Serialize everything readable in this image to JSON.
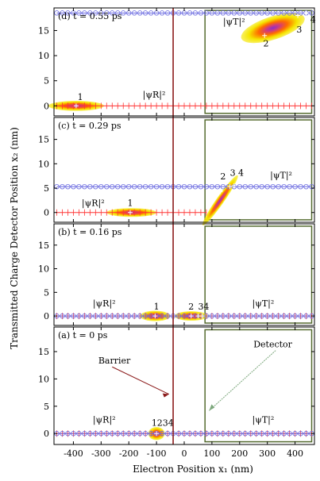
{
  "chart_data": {
    "type": "scatter",
    "xlabel": "Electron Position x₁ (nm)",
    "ylabel": "Transmitted Charge Detector Position x₂ (nm)",
    "xlim": [
      -470,
      470
    ],
    "ylim": [
      -2,
      19.5
    ],
    "x_ticks": [
      -400,
      -300,
      -200,
      -100,
      0,
      100,
      200,
      300,
      400
    ],
    "x_tick_labels": [
      "-400",
      "-300",
      "-200",
      "-100",
      "0",
      "100",
      "200",
      "300",
      "400"
    ],
    "y_ticks": [
      0,
      5,
      10,
      15
    ],
    "y_tick_labels": [
      "0",
      "5",
      "10",
      "15"
    ],
    "barrier_x": -40,
    "detector_region": {
      "x": [
        75,
        460
      ],
      "y": [
        -1.5,
        19
      ]
    },
    "colors": {
      "barrier": "#8b1a1a",
      "detector": "#556b2f",
      "psi_R": "#ff3333",
      "psi_T": "#6a6ae0",
      "density_core": "#8b2fc9",
      "density_mid": "#ff6a00",
      "density_outer": "#f5e600"
    },
    "panels": [
      {
        "title": "(d) t = 0.55 ps",
        "psi_T_y": 18.5,
        "psi_R_y": 0,
        "psi_R_xrange": [
          -460,
          460
        ],
        "psi_T_xrange": [
          -460,
          460
        ],
        "labels": [
          {
            "text": "1",
            "x": -385,
            "y": 1.2
          },
          {
            "text": "|ψR|²",
            "x": -150,
            "y": 1.6
          },
          {
            "text": "|ψT|²",
            "x": 140,
            "y": 16.2
          },
          {
            "text": "2",
            "x": 285,
            "y": 11.8
          },
          {
            "text": "3",
            "x": 405,
            "y": 14.6
          },
          {
            "text": "4",
            "x": 455,
            "y": 16.6
          }
        ],
        "blobs": [
          {
            "x": -390,
            "y": 0,
            "rx": 100,
            "ry": 1.0
          },
          {
            "x": 320,
            "y": 15.5,
            "rx": 120,
            "ry": 2.3,
            "angle": -18
          }
        ],
        "points": [
          {
            "x": -390,
            "y": 0,
            "label": "1"
          },
          {
            "x": 290,
            "y": 14,
            "label": "2"
          },
          {
            "x": 410,
            "y": 18,
            "label": "3"
          },
          {
            "x": 440,
            "y": 18.5,
            "label": "4"
          }
        ]
      },
      {
        "title": "(c) t = 0.29 ps",
        "psi_T_y": 5.3,
        "psi_R_y": 0,
        "psi_R_xrange": [
          -460,
          80
        ],
        "psi_T_xrange": [
          -460,
          460
        ],
        "labels": [
          {
            "text": "|ψR|²",
            "x": -370,
            "y": 1.3
          },
          {
            "text": "1",
            "x": -205,
            "y": 1.3
          },
          {
            "text": "2",
            "x": 130,
            "y": 6.8
          },
          {
            "text": "3",
            "x": 165,
            "y": 7.5
          },
          {
            "text": "4",
            "x": 195,
            "y": 7.5
          },
          {
            "text": "|ψT|²",
            "x": 310,
            "y": 7.0
          }
        ],
        "blobs": [
          {
            "x": -190,
            "y": 0,
            "rx": 90,
            "ry": 0.9
          },
          {
            "x": 130,
            "y": 2.5,
            "rx": 110,
            "ry": 0.8,
            "angle": -55
          }
        ],
        "points": [
          {
            "x": -195,
            "y": 0,
            "label": "1"
          },
          {
            "x": 130,
            "y": 4.3,
            "label": "2"
          },
          {
            "x": 165,
            "y": 5.3,
            "label": "3"
          },
          {
            "x": 180,
            "y": 5.5,
            "label": "4"
          }
        ]
      },
      {
        "title": "(b) t = 0.16 ps",
        "psi_T_y": 0,
        "psi_R_y": 0,
        "psi_R_xrange": [
          -460,
          460
        ],
        "psi_T_xrange": [
          -460,
          460
        ],
        "labels": [
          {
            "text": "|ψR|²",
            "x": -330,
            "y": 2.0
          },
          {
            "text": "1",
            "x": -110,
            "y": 1.4
          },
          {
            "text": "2",
            "x": 15,
            "y": 1.4
          },
          {
            "text": "3",
            "x": 50,
            "y": 1.4
          },
          {
            "text": "4",
            "x": 70,
            "y": 1.4
          },
          {
            "text": "|ψT|²",
            "x": 245,
            "y": 2.0
          }
        ],
        "blobs": [
          {
            "x": -105,
            "y": 0,
            "rx": 55,
            "ry": 1.1
          },
          {
            "x": 25,
            "y": 0,
            "rx": 60,
            "ry": 1.0
          }
        ],
        "points": [
          {
            "x": -105,
            "y": 0,
            "label": "1"
          },
          {
            "x": 25,
            "y": 0,
            "label": "2"
          },
          {
            "x": 50,
            "y": 0,
            "label": "3"
          },
          {
            "x": 65,
            "y": 0,
            "label": "4"
          }
        ]
      },
      {
        "title": "(a) t = 0 ps",
        "psi_T_y": 0,
        "psi_R_y": 0,
        "psi_R_xrange": [
          -460,
          460
        ],
        "psi_T_xrange": [
          -460,
          460
        ],
        "labels": [
          {
            "text": "Barrier",
            "x": -310,
            "y": 12.8
          },
          {
            "text": "Detector",
            "x": 250,
            "y": 15.8
          },
          {
            "text": "1234",
            "x": -118,
            "y": 1.4
          },
          {
            "text": "|ψR|²",
            "x": -330,
            "y": 2.0
          },
          {
            "text": "|ψT|²",
            "x": 245,
            "y": 2.0
          }
        ],
        "blobs": [
          {
            "x": -100,
            "y": 0,
            "rx": 30,
            "ry": 1.2
          }
        ],
        "points": [
          {
            "x": -100,
            "y": 0,
            "label": "1234"
          }
        ]
      }
    ]
  }
}
